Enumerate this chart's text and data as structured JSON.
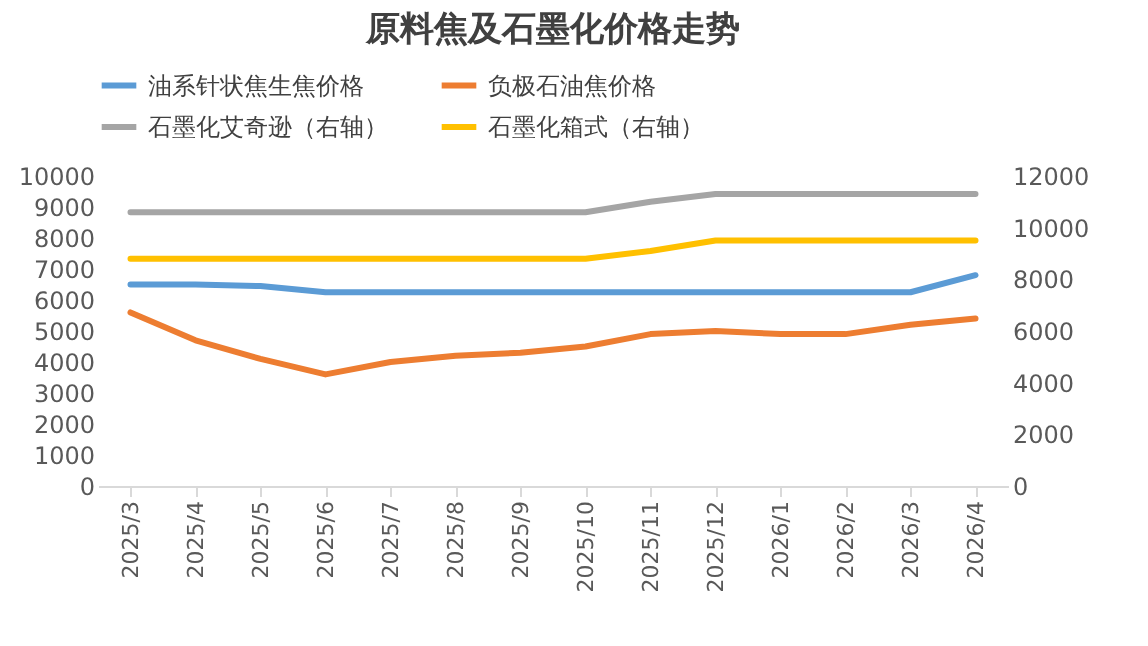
{
  "chart_data": {
    "type": "line",
    "title": "原料焦及石墨化价格走势",
    "categories": [
      "2025/3",
      "2025/4",
      "2025/5",
      "2025/6",
      "2025/7",
      "2025/8",
      "2025/9",
      "2025/10",
      "2025/11",
      "2025/12",
      "2026/1",
      "2026/2",
      "2026/3",
      "2026/4"
    ],
    "series": [
      {
        "name": "油系针状焦生焦价格",
        "color": "#5b9bd5",
        "values": [
          6500,
          6500,
          6450,
          6250,
          6250,
          6250,
          6250,
          6250,
          6250,
          6250,
          6250,
          6250,
          6250,
          6800
        ]
      },
      {
        "name": "负极石油焦价格",
        "color": "#ed7d31",
        "values": [
          5600,
          4700,
          4100,
          3600,
          4000,
          4200,
          4300,
          4500,
          4900,
          5000,
          4900,
          4900,
          5200,
          5400
        ]
      },
      {
        "name": "石墨化艾奇逊（右轴）",
        "color": "#a5a5a5",
        "axis": "y2",
        "values": [
          10600,
          10600,
          10600,
          10600,
          10600,
          10600,
          10600,
          10600,
          11000,
          11300,
          11300,
          11300,
          11300,
          11300
        ]
      },
      {
        "name": "石墨化箱式（右轴）",
        "color": "#ffc000",
        "axis": "y2",
        "values": [
          8800,
          8800,
          8800,
          8800,
          8800,
          8800,
          8800,
          8800,
          9100,
          9500,
          9500,
          9500,
          9500,
          9500
        ]
      }
    ],
    "ylim": [
      0,
      10000
    ],
    "yticks": [
      0,
      1000,
      2000,
      3000,
      4000,
      5000,
      6000,
      7000,
      8000,
      9000,
      10000
    ],
    "y2lim": [
      0,
      12000
    ],
    "y2ticks": [
      0,
      2000,
      4000,
      6000,
      8000,
      10000,
      12000
    ],
    "legend": "top",
    "grid": false,
    "marker": "none",
    "line_style": "solid"
  }
}
